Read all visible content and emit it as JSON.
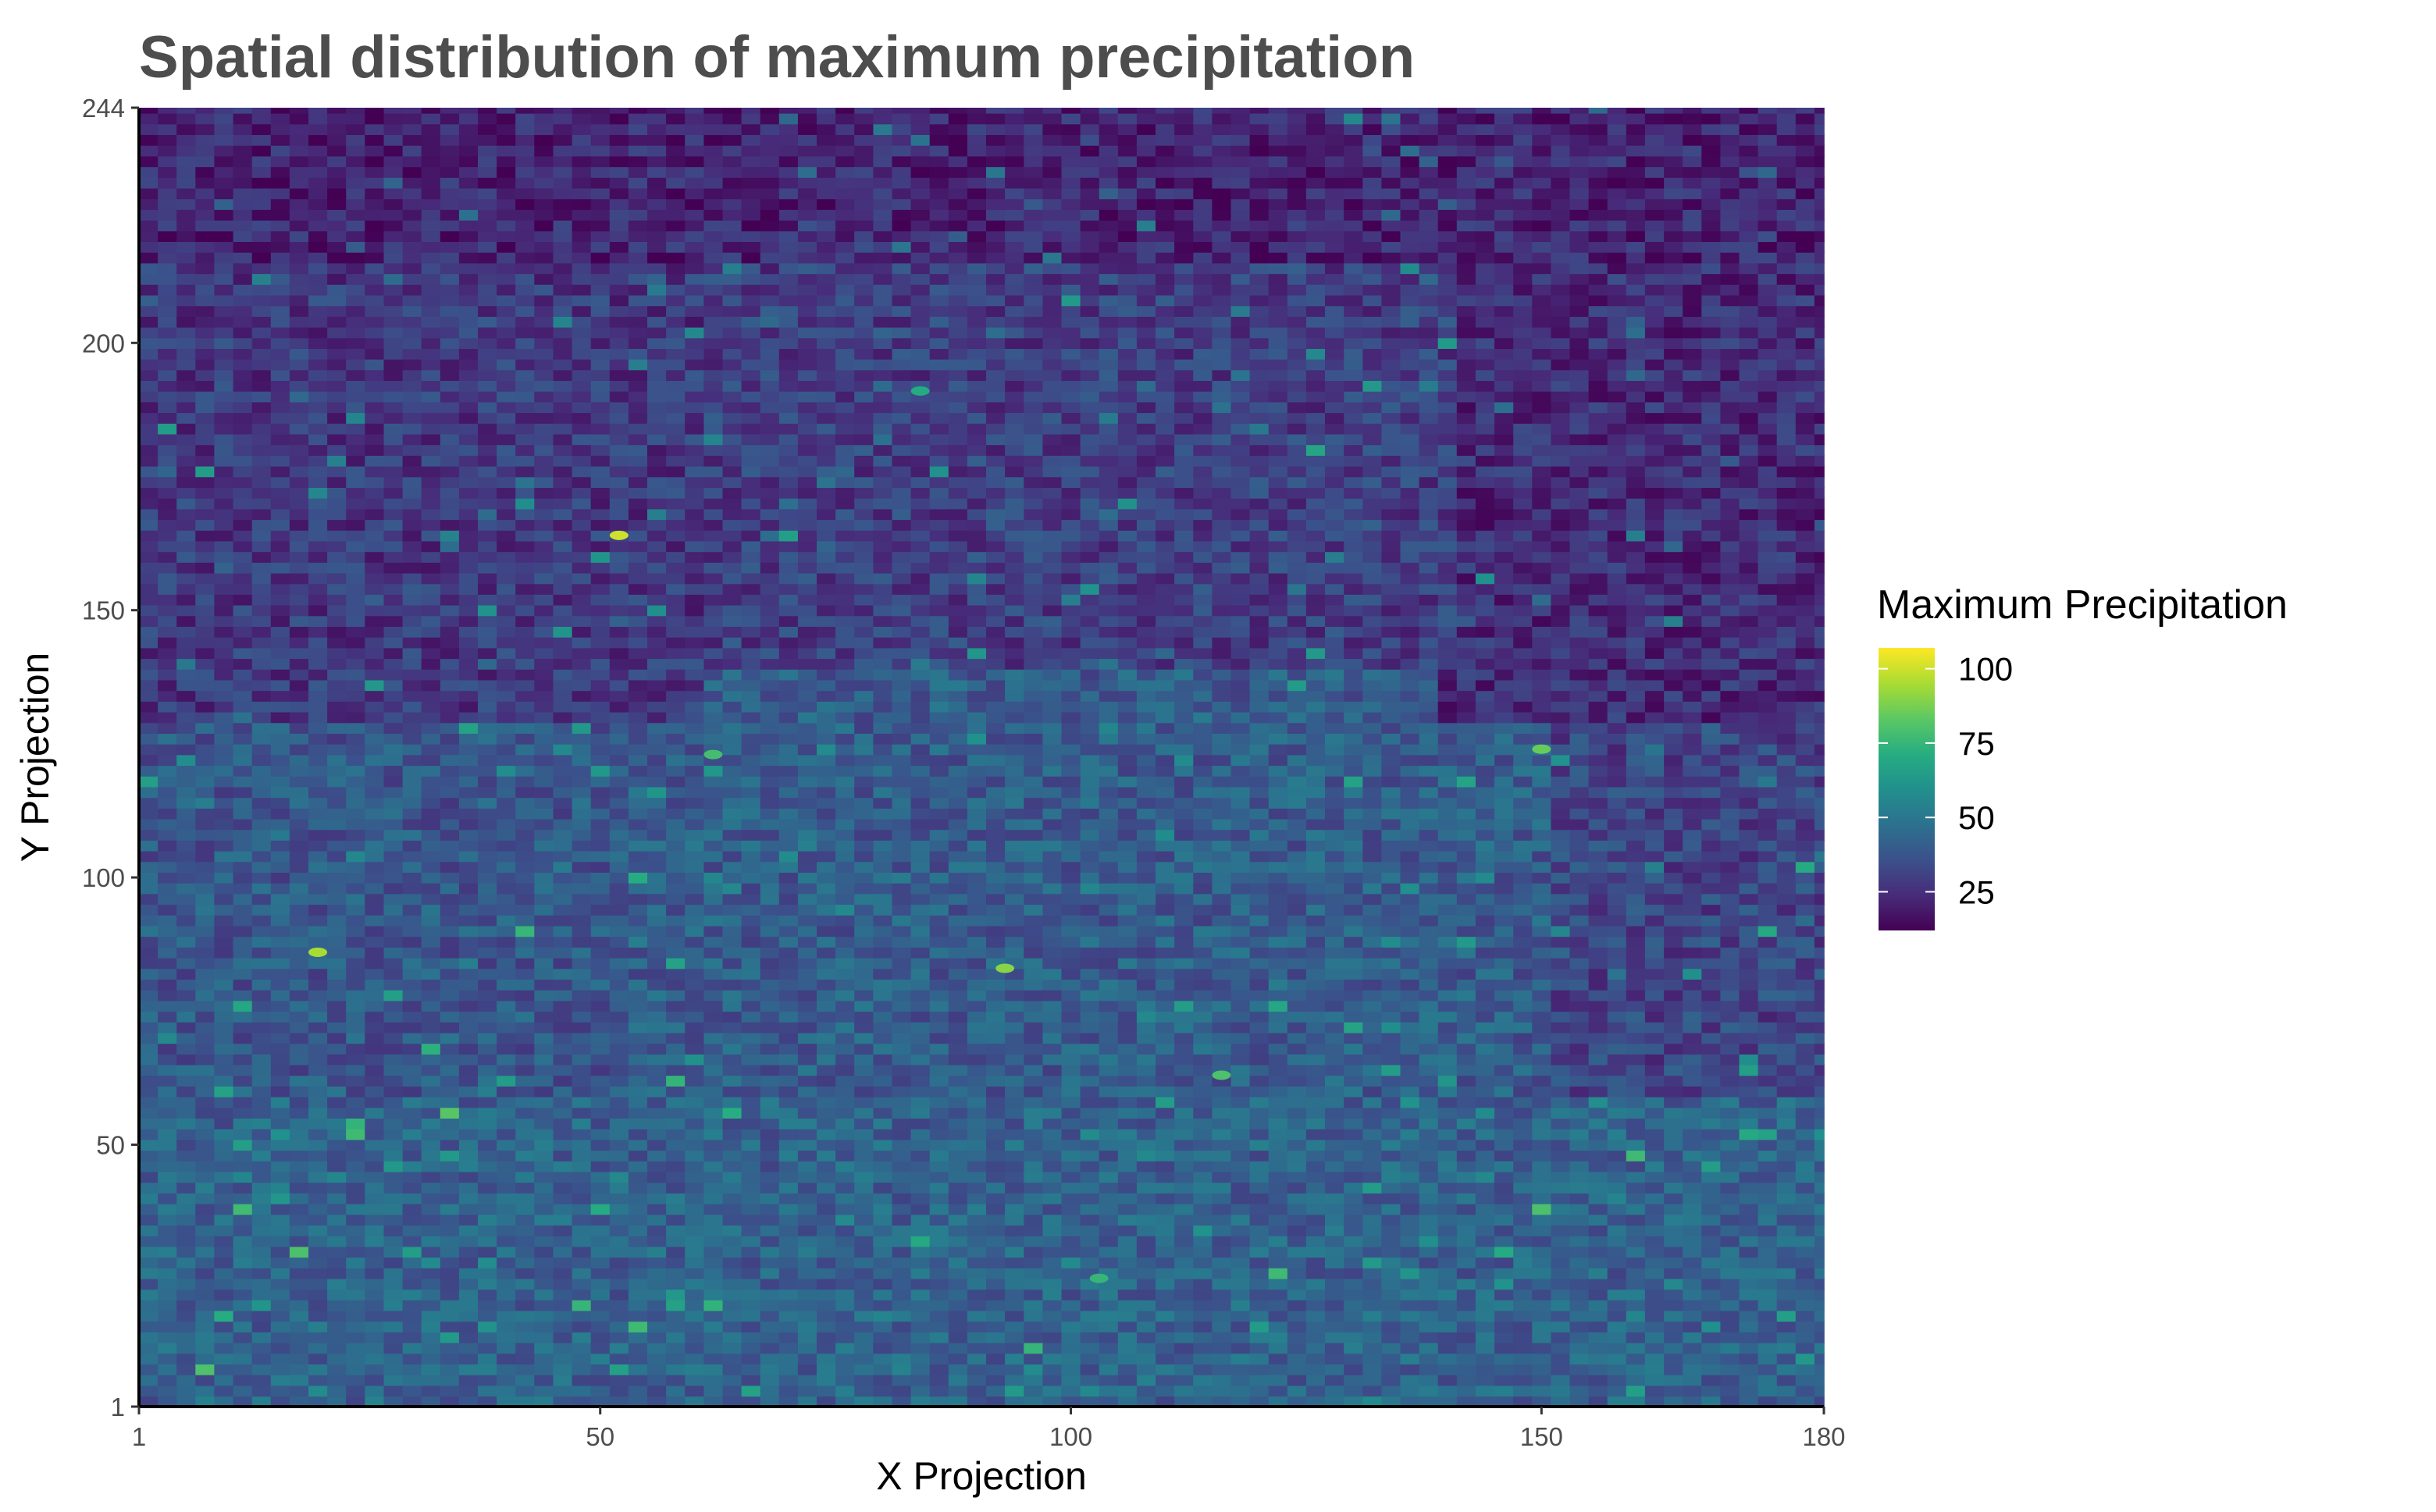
{
  "chart_data": {
    "type": "heatmap",
    "title": "Spatial distribution of maximum precipitation",
    "xlabel": "X Projection",
    "ylabel": "Y Projection",
    "xlim": [
      1,
      180
    ],
    "ylim": [
      1,
      244
    ],
    "x_ticks": [
      1,
      50,
      100,
      150,
      180
    ],
    "y_ticks": [
      1,
      50,
      100,
      150,
      200,
      244
    ],
    "grid": false,
    "colorscale": "viridis",
    "colorscale_stops": [
      "#440154",
      "#472c7a",
      "#3b518b",
      "#2c718e",
      "#21908d",
      "#27ad81",
      "#5cc863",
      "#aadc32",
      "#fde725"
    ],
    "legend": {
      "title": "Maximum Precipitation",
      "position": "right",
      "range": [
        12,
        107
      ],
      "ticks": [
        25,
        50,
        75,
        100
      ]
    },
    "value_regions": [
      {
        "x": [
          1,
          180
        ],
        "y": [
          215,
          244
        ],
        "typical_value": 22
      },
      {
        "x": [
          1,
          60
        ],
        "y": [
          130,
          215
        ],
        "typical_value": 28
      },
      {
        "x": [
          60,
          140
        ],
        "y": [
          140,
          215
        ],
        "typical_value": 30
      },
      {
        "x": [
          140,
          180
        ],
        "y": [
          130,
          215
        ],
        "typical_value": 24
      },
      {
        "x": [
          1,
          50
        ],
        "y": [
          60,
          130
        ],
        "typical_value": 38
      },
      {
        "x": [
          50,
          150
        ],
        "y": [
          60,
          140
        ],
        "typical_value": 40
      },
      {
        "x": [
          150,
          180
        ],
        "y": [
          60,
          130
        ],
        "typical_value": 32
      },
      {
        "x": [
          1,
          180
        ],
        "y": [
          1,
          60
        ],
        "typical_value": 42
      }
    ],
    "hotspots": [
      {
        "x": 52,
        "y": 164,
        "value": 100
      },
      {
        "x": 20,
        "y": 86,
        "value": 95
      },
      {
        "x": 93,
        "y": 83,
        "value": 90
      },
      {
        "x": 150,
        "y": 124,
        "value": 85
      },
      {
        "x": 116,
        "y": 63,
        "value": 80
      },
      {
        "x": 62,
        "y": 123,
        "value": 78
      },
      {
        "x": 103,
        "y": 25,
        "value": 75
      },
      {
        "x": 84,
        "y": 191,
        "value": 70
      }
    ]
  }
}
